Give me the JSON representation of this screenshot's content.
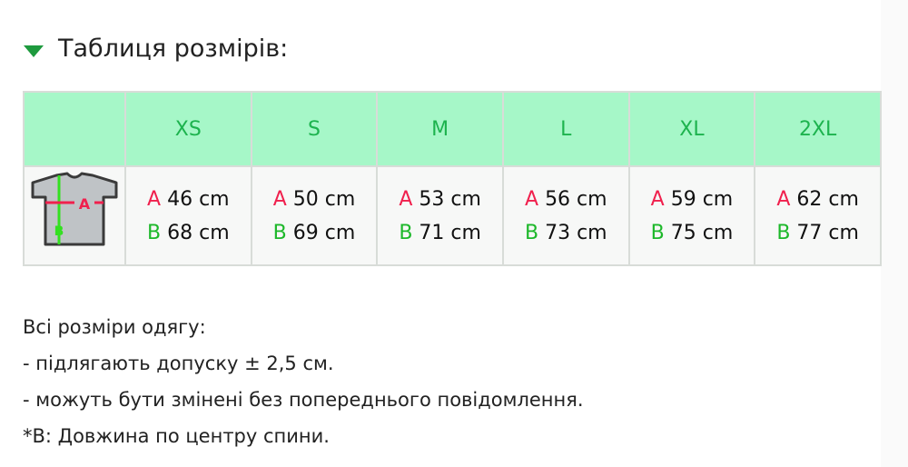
{
  "title": "Таблиця розмірів:",
  "colors": {
    "header_bg": "#a6f7c8",
    "header_text": "#1db34e",
    "a_label": "#f0204d",
    "b_label": "#1db82a",
    "triangle": "#1e9a3e"
  },
  "table": {
    "sizes": [
      "XS",
      "S",
      "M",
      "L",
      "XL",
      "2XL"
    ],
    "a_label": "A",
    "b_label": "B",
    "a_values": [
      "46 cm",
      "50 cm",
      "53 cm",
      "56 cm",
      "59 cm",
      "62 cm"
    ],
    "b_values": [
      "68 cm",
      "69 cm",
      "71 cm",
      "73 cm",
      "75 cm",
      "77 cm"
    ]
  },
  "notes": [
    "Всі розміри одягу:",
    "- підлягають допуску ± 2,5 см.",
    "- можуть бути змінені без попереднього повідомлення.",
    "*В: Довжина по центру спини."
  ]
}
